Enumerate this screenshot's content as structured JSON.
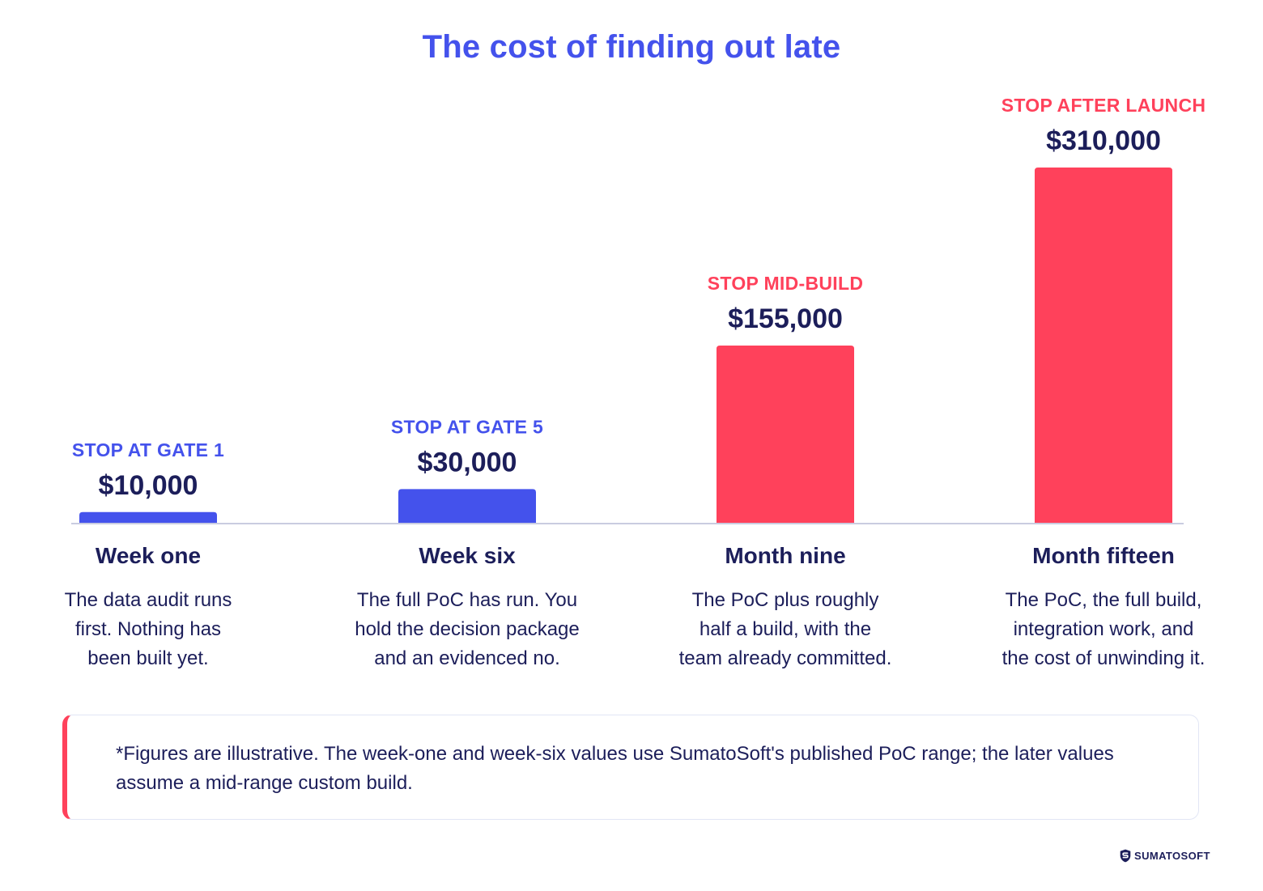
{
  "title": "The cost of finding out late",
  "colors": {
    "accent_blue": "#4452EC",
    "accent_red": "#FF415B",
    "text_dark": "#1C1E5A",
    "axis": "#C9CCE0"
  },
  "chart_data": {
    "type": "bar",
    "title": "The cost of finding out late",
    "xlabel": "",
    "ylabel": "",
    "ylim": [
      0,
      310000
    ],
    "grid": false,
    "categories": [
      {
        "label": "Week one",
        "stage": "STOP AT GATE 1",
        "value": 10000,
        "value_label": "$10,000",
        "color": "#4452EC",
        "description": [
          "The data audit runs",
          "first. Nothing has",
          "been built yet."
        ]
      },
      {
        "label": "Week six",
        "stage": "STOP AT GATE 5",
        "value": 30000,
        "value_label": "$30,000",
        "color": "#4452EC",
        "description": [
          "The full PoC has run. You",
          "hold the decision package",
          "and an evidenced no."
        ]
      },
      {
        "label": "Month nine",
        "stage": "STOP MID-BUILD",
        "value": 155000,
        "value_label": "$155,000",
        "color": "#FF415B",
        "description": [
          "The PoC plus roughly",
          "half a build, with the",
          "team already committed."
        ]
      },
      {
        "label": "Month fifteen",
        "stage": "STOP AFTER LAUNCH",
        "value": 310000,
        "value_label": "$310,000",
        "color": "#FF415B",
        "description": [
          "The PoC, the full build,",
          "integration work, and",
          "the cost of unwinding it."
        ]
      }
    ]
  },
  "note": {
    "text": "*Figures are illustrative. The week-one and week-six values use SumatoSoft's published PoC range; the later values assume a mid-range custom build."
  },
  "logo": {
    "text": "SUMATOSOFT",
    "icon": "shield-s-icon"
  }
}
